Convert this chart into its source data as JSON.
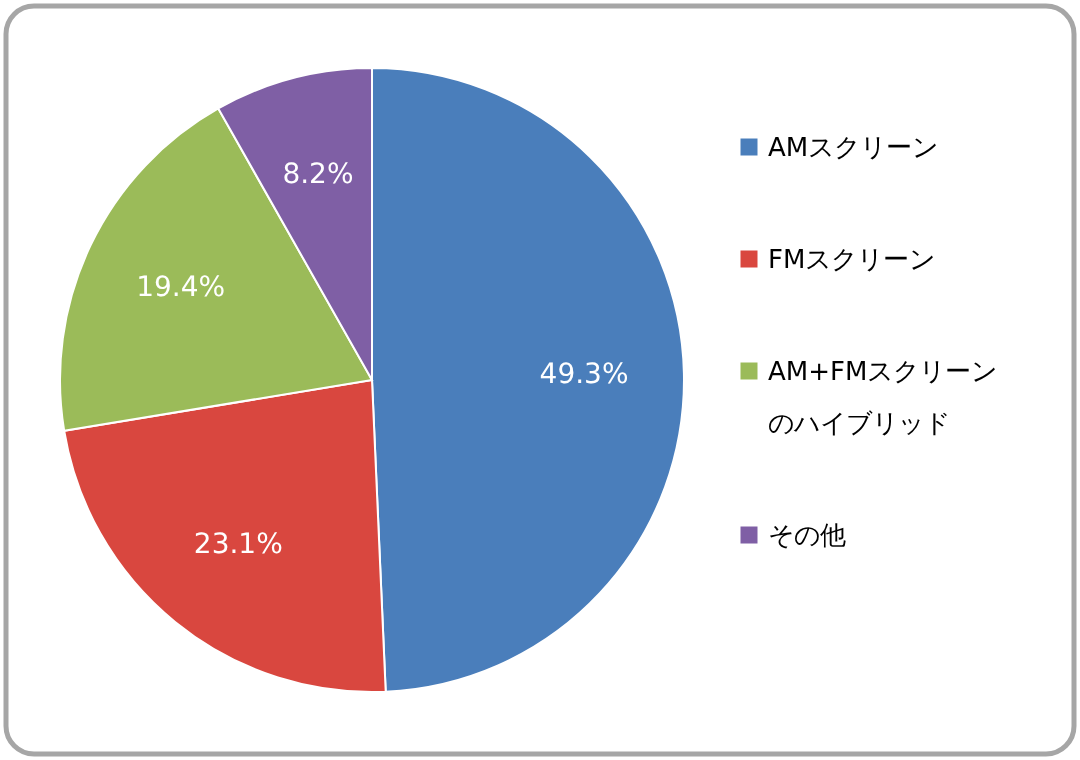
{
  "chart_data": {
    "type": "pie",
    "categories": [
      "AMスクリーン",
      "FMスクリーン",
      "AM+FMスクリーンのハイブリッド",
      "その他"
    ],
    "values": [
      49.3,
      23.1,
      19.4,
      8.2
    ],
    "value_labels": [
      "49.3%",
      "23.1%",
      "19.4%",
      "8.2%"
    ],
    "colors": [
      "#4a7ebb",
      "#d9473f",
      "#9bbb59",
      "#7f5fa5"
    ],
    "legend": "right"
  }
}
